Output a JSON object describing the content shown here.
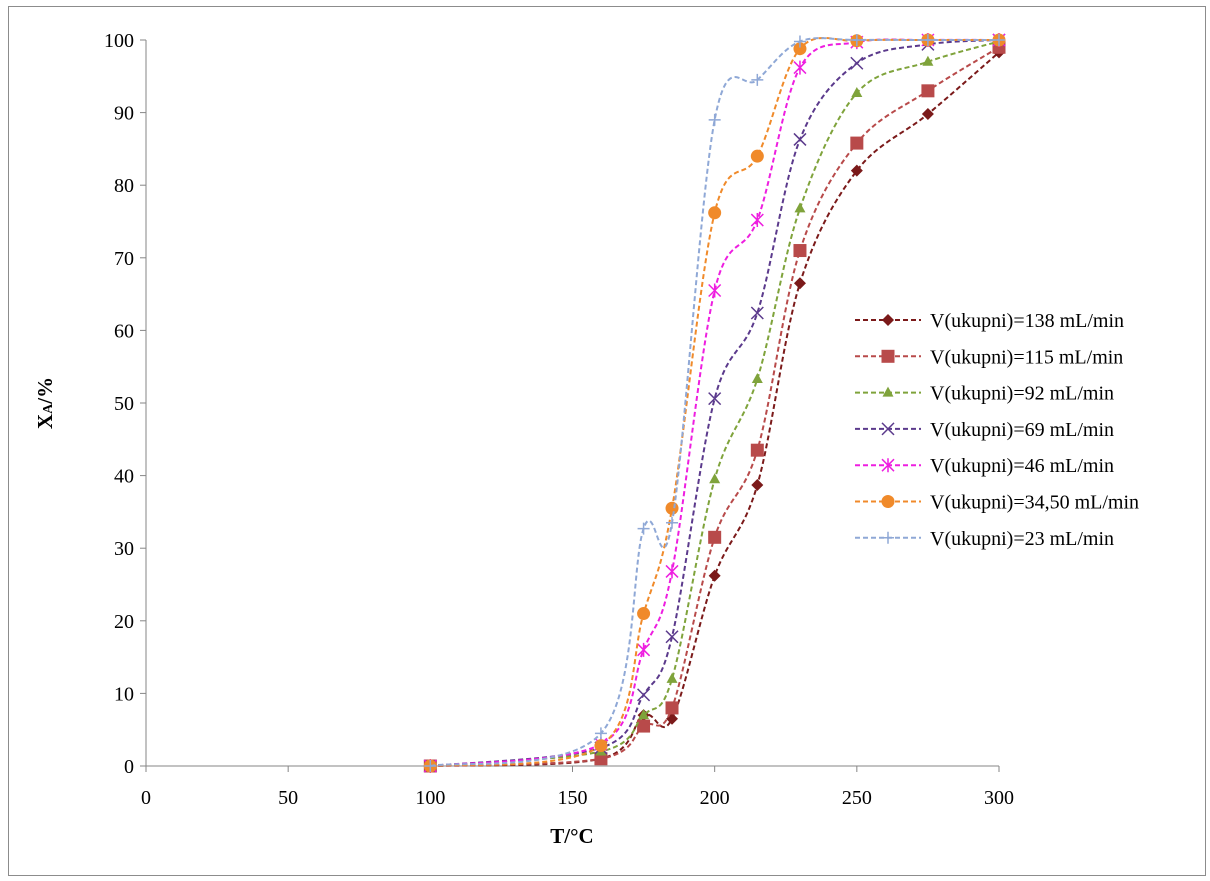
{
  "chart_data": {
    "type": "scatter",
    "title": "",
    "xlabel": "T/°C",
    "ylabel": "XA/%",
    "ylabel_main": "X",
    "ylabel_sub": "A",
    "ylabel_suffix": "/%",
    "xlim": [
      0,
      300
    ],
    "ylim": [
      0,
      100
    ],
    "x_ticks": [
      0,
      50,
      100,
      150,
      200,
      250,
      300
    ],
    "y_ticks": [
      0,
      10,
      20,
      30,
      40,
      50,
      60,
      70,
      80,
      90,
      100
    ],
    "grid": false,
    "legend_position": "right",
    "series": [
      {
        "name": "V(ukupni)=138 mL/min",
        "color": "#7b1a1a",
        "marker": "diamond",
        "x": [
          100,
          160,
          175,
          185,
          200,
          215,
          230,
          250,
          275,
          300
        ],
        "y": [
          0,
          1,
          7,
          6.5,
          26.2,
          38.7,
          66.5,
          82,
          89.8,
          98.3
        ]
      },
      {
        "name": "V(ukupni)=115 mL/min",
        "color": "#b84a4a",
        "marker": "square",
        "x": [
          100,
          160,
          175,
          185,
          200,
          215,
          230,
          250,
          275,
          300
        ],
        "y": [
          0,
          1,
          5.5,
          8,
          31.5,
          43.5,
          71,
          85.8,
          93,
          99
        ]
      },
      {
        "name": "V(ukupni)=92 mL/min",
        "color": "#7fa33b",
        "marker": "triangle",
        "x": [
          100,
          160,
          175,
          185,
          200,
          215,
          230,
          250,
          275,
          300
        ],
        "y": [
          0,
          2,
          7,
          12,
          39.5,
          53.3,
          76.8,
          92.7,
          97,
          99.8
        ]
      },
      {
        "name": "V(ukupni)=69 mL/min",
        "color": "#5b3a8c",
        "marker": "x",
        "x": [
          100,
          160,
          175,
          185,
          200,
          215,
          230,
          250,
          275,
          300
        ],
        "y": [
          0,
          2.5,
          9.8,
          17.8,
          50.6,
          62.4,
          86.3,
          96.8,
          99.4,
          100
        ]
      },
      {
        "name": "V(ukupni)=46 mL/min",
        "color": "#ee1ee0",
        "marker": "star",
        "x": [
          100,
          160,
          175,
          185,
          200,
          215,
          230,
          250,
          275,
          300
        ],
        "y": [
          0,
          3,
          16,
          26.8,
          65.5,
          75.2,
          96.2,
          99.7,
          100,
          100
        ]
      },
      {
        "name": "V(ukupni)=34,50 mL/min",
        "color": "#f08a2a",
        "marker": "circle",
        "x": [
          100,
          160,
          175,
          185,
          200,
          215,
          230,
          250,
          275,
          300
        ],
        "y": [
          0,
          2.8,
          21,
          35.5,
          76.2,
          84,
          98.8,
          99.9,
          100,
          100
        ]
      },
      {
        "name": "V(ukupni)=23 mL/min",
        "color": "#8fa8d6",
        "marker": "plus",
        "x": [
          100,
          160,
          175,
          185,
          200,
          215,
          230,
          250,
          275,
          300
        ],
        "y": [
          0,
          4.5,
          32.7,
          33.5,
          89,
          94.5,
          99.8,
          100,
          100,
          100
        ]
      }
    ]
  }
}
